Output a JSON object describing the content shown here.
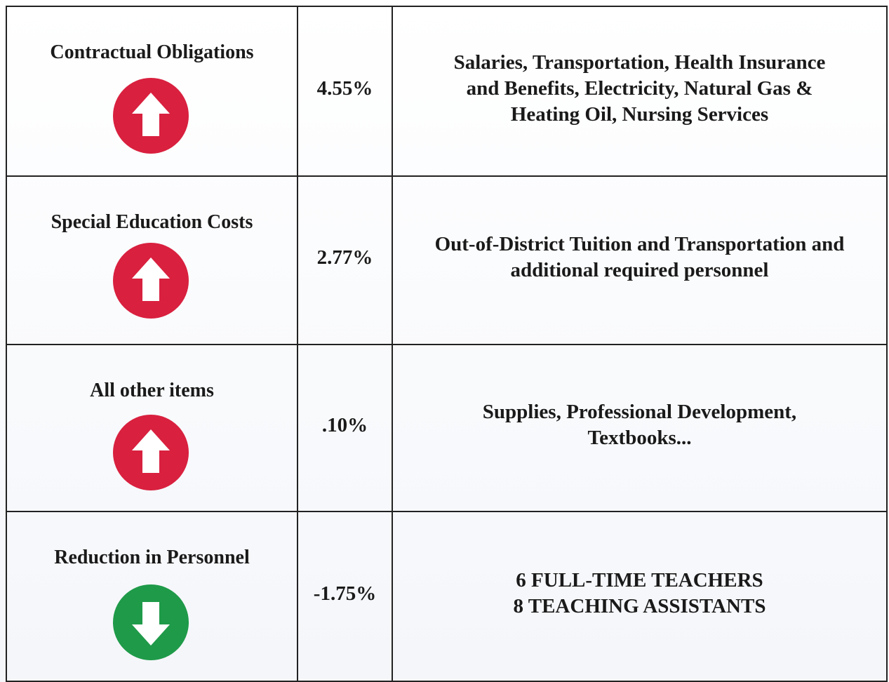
{
  "table": {
    "rows": [
      {
        "label": "Contractual Obligations",
        "change": "4.55%",
        "details": [
          "Salaries, Transportation, Health Insurance",
          "and Benefits, Electricity, Natural Gas &",
          "Heating Oil, Nursing Services"
        ]
      },
      {
        "label": "Special Education Costs",
        "change": "2.77%",
        "details": [
          "Out-of-District Tuition and Transportation and",
          "additional required personnel"
        ]
      },
      {
        "label": "All other items",
        "change": ".10%",
        "details": [
          "Supplies, Professional Development,",
          "Textbooks..."
        ]
      },
      {
        "label": "Reduction in Personnel",
        "change": "-1.75%",
        "details": [
          "6 FULL-TIME TEACHERS",
          "8 TEACHING ASSISTANTS"
        ]
      }
    ]
  }
}
